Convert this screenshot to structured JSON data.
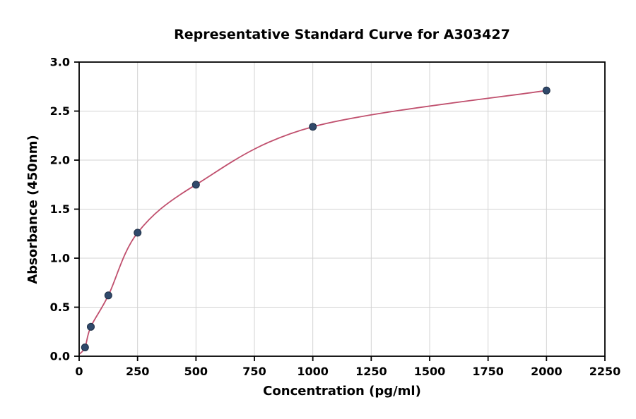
{
  "chart_data": {
    "type": "scatter",
    "title": "Representative Standard Curve for A303427",
    "xlabel": "Concentration (pg/ml)",
    "ylabel": "Absorbance (450nm)",
    "xlim": [
      0,
      2250
    ],
    "ylim": [
      0.0,
      3.0
    ],
    "grid": true,
    "legend": "none",
    "x_ticks": [
      0,
      250,
      500,
      750,
      1000,
      1250,
      1500,
      1750,
      2000,
      2250
    ],
    "x_tick_labels": [
      "0",
      "250",
      "500",
      "750",
      "1000",
      "1250",
      "1500",
      "1750",
      "2000",
      "2250"
    ],
    "y_ticks": [
      0.0,
      0.5,
      1.0,
      1.5,
      2.0,
      2.5,
      3.0
    ],
    "y_tick_labels": [
      "0.0",
      "0.5",
      "1.0",
      "1.5",
      "2.0",
      "2.5",
      "3.0"
    ],
    "points": {
      "x": [
        25,
        50,
        125,
        250,
        500,
        1000,
        2000
      ],
      "y": [
        0.09,
        0.3,
        0.62,
        1.26,
        1.75,
        2.34,
        2.71
      ]
    },
    "curve_start": {
      "x": 0,
      "y": 0.02
    },
    "colors": {
      "curve": "#c0506e",
      "marker": "#30496b",
      "marker_edge": "#1d2e45",
      "grid": "#d3d3d3",
      "axis": "#000000",
      "background": "#ffffff"
    }
  }
}
